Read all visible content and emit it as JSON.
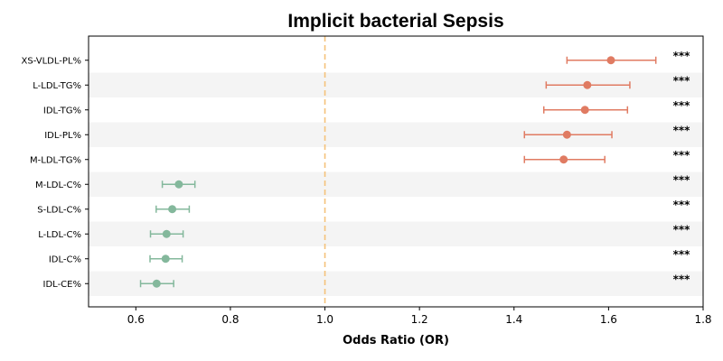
{
  "chart_data": {
    "type": "forest",
    "title": "Implicit bacterial Sepsis",
    "xlabel": "Odds Ratio (OR)",
    "xlim": [
      0.5,
      1.8
    ],
    "xticks": [
      0.6,
      0.8,
      1.0,
      1.2,
      1.4,
      1.6,
      1.8
    ],
    "xtick_labels": [
      "0.6",
      "0.8",
      "1.0",
      "1.2",
      "1.4",
      "1.6",
      "1.8"
    ],
    "reference_line": 1.0,
    "colors": {
      "positive": "#E07B62",
      "negative": "#84B89C",
      "reference": "#F5C27A",
      "stripe": "#f4f4f4"
    },
    "rows": [
      {
        "label": "XS-VLDL-PL%",
        "or": 1.605,
        "lower": 1.512,
        "upper": 1.7,
        "sig": "***"
      },
      {
        "label": "L-LDL-TG%",
        "or": 1.555,
        "lower": 1.468,
        "upper": 1.645,
        "sig": "***"
      },
      {
        "label": "IDL-TG%",
        "or": 1.55,
        "lower": 1.463,
        "upper": 1.64,
        "sig": "***"
      },
      {
        "label": "IDL-PL%",
        "or": 1.512,
        "lower": 1.422,
        "upper": 1.607,
        "sig": "***"
      },
      {
        "label": "M-LDL-TG%",
        "or": 1.505,
        "lower": 1.422,
        "upper": 1.592,
        "sig": "***"
      },
      {
        "label": "M-LDL-C%",
        "or": 0.691,
        "lower": 0.656,
        "upper": 0.725,
        "sig": "***"
      },
      {
        "label": "S-LDL-C%",
        "or": 0.677,
        "lower": 0.643,
        "upper": 0.713,
        "sig": "***"
      },
      {
        "label": "L-LDL-C%",
        "or": 0.665,
        "lower": 0.631,
        "upper": 0.7,
        "sig": "***"
      },
      {
        "label": "IDL-C%",
        "or": 0.663,
        "lower": 0.63,
        "upper": 0.698,
        "sig": "***"
      },
      {
        "label": "IDL-CE%",
        "or": 0.644,
        "lower": 0.61,
        "upper": 0.68,
        "sig": "***"
      }
    ]
  }
}
